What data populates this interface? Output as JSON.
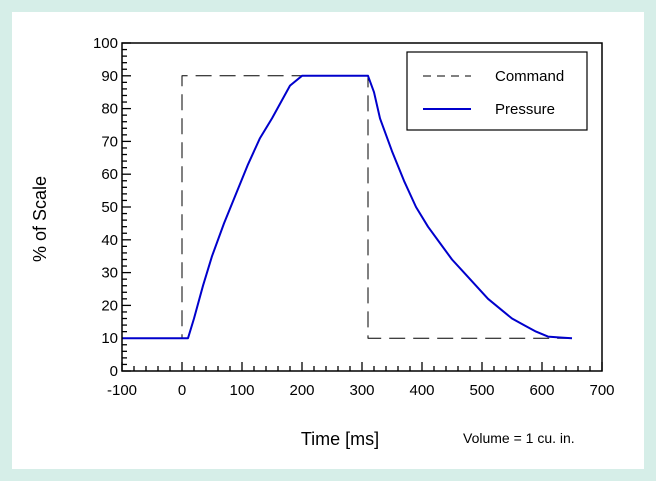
{
  "chart_data": {
    "type": "line",
    "title": "",
    "xlabel": "Time [ms]",
    "ylabel": "% of Scale",
    "annotation": "Volume = 1 cu. in.",
    "xlim": [
      -100,
      700
    ],
    "ylim": [
      0,
      100
    ],
    "x_ticks": [
      -100,
      0,
      100,
      200,
      300,
      400,
      500,
      600,
      700
    ],
    "y_ticks": [
      0,
      10,
      20,
      30,
      40,
      50,
      60,
      70,
      80,
      90,
      100
    ],
    "legend": {
      "placement": "top-right",
      "entries": [
        "Command",
        "Pressure"
      ]
    },
    "grid": false,
    "series": [
      {
        "name": "Command",
        "color": "#000000",
        "style": "dashed",
        "x": [
          -100,
          0,
          0,
          310,
          310,
          650
        ],
        "y": [
          10,
          10,
          90,
          90,
          10,
          10
        ]
      },
      {
        "name": "Pressure",
        "color": "#0000cc",
        "style": "solid",
        "x": [
          -100,
          10,
          20,
          35,
          50,
          70,
          90,
          110,
          130,
          150,
          165,
          180,
          200,
          220,
          260,
          300,
          310,
          320,
          330,
          350,
          370,
          390,
          410,
          430,
          450,
          470,
          490,
          510,
          530,
          550,
          570,
          590,
          610,
          630,
          650
        ],
        "y": [
          10,
          10,
          16,
          26,
          35,
          45,
          54,
          63,
          71,
          77,
          82,
          87,
          90,
          90,
          90,
          90,
          90,
          85,
          77,
          67,
          58,
          50,
          44,
          39,
          34,
          30,
          26,
          22,
          19,
          16,
          14,
          12,
          10.5,
          10.2,
          10
        ]
      }
    ]
  }
}
